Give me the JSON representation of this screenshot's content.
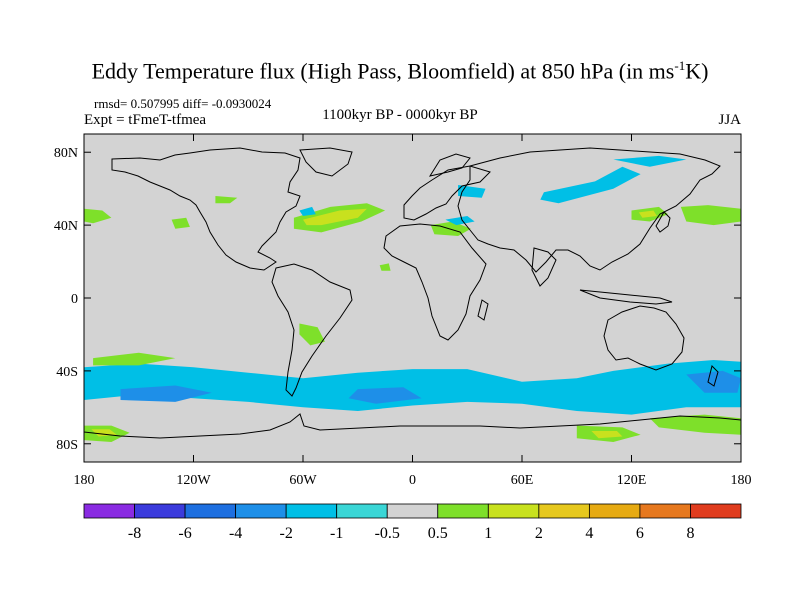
{
  "title_main": "Eddy Temperature flux (High Pass, Bloomfield) at 850 hPa (in ms",
  "title_sup": "-1",
  "title_end": "K)",
  "stats": "rmsd= 0.507995 diff= -0.0930024",
  "expt": "Expt = tFmeT-tfmea",
  "period": "1100kyr BP - 0000kyr BP",
  "season": "JJA",
  "map": {
    "lon_range": [
      -180,
      180
    ],
    "lat_range": [
      -90,
      90
    ],
    "background_color": "#d3d3d3",
    "y_ticks": [
      {
        "lat": 80,
        "label": "80N"
      },
      {
        "lat": 40,
        "label": "40N"
      },
      {
        "lat": 0,
        "label": "0"
      },
      {
        "lat": -40,
        "label": "40S"
      },
      {
        "lat": -80,
        "label": "80S"
      }
    ],
    "x_ticks": [
      {
        "lon": -180,
        "label": "180"
      },
      {
        "lon": -120,
        "label": "120W"
      },
      {
        "lon": -60,
        "label": "60W"
      },
      {
        "lon": 0,
        "label": "0"
      },
      {
        "lon": 60,
        "label": "60E"
      },
      {
        "lon": 120,
        "label": "120E"
      },
      {
        "lon": 180,
        "label": "180"
      }
    ]
  },
  "colorbar": {
    "colors": [
      "#8a2be2",
      "#3b3bdc",
      "#1d6fe0",
      "#1e8fe8",
      "#00bfe6",
      "#3ad6d6",
      "#d3d3d3",
      "#7ee02a",
      "#c8e11e",
      "#e6c81e",
      "#e6aa12",
      "#e6781e",
      "#e03c1e"
    ],
    "labels": [
      "-8",
      "-6",
      "-4",
      "-2",
      "-1",
      "-0.5",
      "0.5",
      "1",
      "2",
      "4",
      "6",
      "8"
    ]
  },
  "regions": [
    {
      "name": "southern-ocean-band-main",
      "color_index": 4,
      "points": [
        [
          -180,
          -38
        ],
        [
          -150,
          -36
        ],
        [
          -120,
          -38
        ],
        [
          -90,
          -41
        ],
        [
          -60,
          -44
        ],
        [
          -30,
          -41
        ],
        [
          0,
          -39
        ],
        [
          30,
          -39
        ],
        [
          60,
          -46
        ],
        [
          90,
          -44
        ],
        [
          110,
          -40
        ],
        [
          140,
          -36
        ],
        [
          165,
          -34
        ],
        [
          180,
          -35
        ],
        [
          180,
          -60
        ],
        [
          150,
          -60
        ],
        [
          120,
          -64
        ],
        [
          90,
          -62
        ],
        [
          60,
          -58
        ],
        [
          30,
          -57
        ],
        [
          0,
          -59
        ],
        [
          -30,
          -62
        ],
        [
          -60,
          -60
        ],
        [
          -90,
          -57
        ],
        [
          -120,
          -55
        ],
        [
          -150,
          -53
        ],
        [
          -180,
          -56
        ]
      ]
    },
    {
      "name": "southern-ocean-blue-cell-1",
      "color_index": 3,
      "points": [
        [
          -160,
          -50
        ],
        [
          -130,
          -48
        ],
        [
          -110,
          -52
        ],
        [
          -130,
          -57
        ],
        [
          -160,
          -56
        ]
      ]
    },
    {
      "name": "southern-ocean-blue-cell-2",
      "color_index": 3,
      "points": [
        [
          -30,
          -50
        ],
        [
          -5,
          -49
        ],
        [
          5,
          -55
        ],
        [
          -20,
          -58
        ],
        [
          -35,
          -55
        ]
      ]
    },
    {
      "name": "southern-ocean-blue-cell-3",
      "color_index": 3,
      "points": [
        [
          150,
          -42
        ],
        [
          170,
          -40
        ],
        [
          180,
          -44
        ],
        [
          178,
          -52
        ],
        [
          160,
          -52
        ]
      ]
    },
    {
      "name": "south-pacific-green",
      "color_index": 7,
      "points": [
        [
          -175,
          -33
        ],
        [
          -150,
          -30
        ],
        [
          -130,
          -33
        ],
        [
          -150,
          -37
        ],
        [
          -175,
          -37
        ]
      ]
    },
    {
      "name": "south-america-green",
      "color_index": 7,
      "points": [
        [
          -62,
          -14
        ],
        [
          -52,
          -16
        ],
        [
          -48,
          -24
        ],
        [
          -56,
          -26
        ],
        [
          -62,
          -20
        ]
      ]
    },
    {
      "name": "antarctic-coast-green-1",
      "color_index": 7,
      "points": [
        [
          -180,
          -70
        ],
        [
          -165,
          -70
        ],
        [
          -155,
          -74
        ],
        [
          -165,
          -79
        ],
        [
          -180,
          -78
        ]
      ]
    },
    {
      "name": "antarctic-coast-yellow-1",
      "color_index": 8,
      "points": [
        [
          -176,
          -72
        ],
        [
          -166,
          -72
        ],
        [
          -162,
          -75
        ],
        [
          -172,
          -76
        ]
      ]
    },
    {
      "name": "antarctic-coast-green-2",
      "color_index": 7,
      "points": [
        [
          90,
          -70
        ],
        [
          115,
          -71
        ],
        [
          125,
          -75
        ],
        [
          110,
          -79
        ],
        [
          90,
          -77
        ]
      ]
    },
    {
      "name": "antarctic-coast-yellow-2",
      "color_index": 8,
      "points": [
        [
          98,
          -73
        ],
        [
          112,
          -73
        ],
        [
          115,
          -76
        ],
        [
          102,
          -77
        ]
      ]
    },
    {
      "name": "antarctic-coast-green-3",
      "color_index": 7,
      "points": [
        [
          130,
          -66
        ],
        [
          160,
          -64
        ],
        [
          180,
          -66
        ],
        [
          180,
          -75
        ],
        [
          160,
          -74
        ],
        [
          135,
          -71
        ]
      ]
    },
    {
      "name": "north-atlantic-green",
      "color_index": 7,
      "points": [
        [
          -65,
          44
        ],
        [
          -45,
          50
        ],
        [
          -25,
          52
        ],
        [
          -15,
          48
        ],
        [
          -28,
          42
        ],
        [
          -50,
          36
        ],
        [
          -65,
          38
        ]
      ]
    },
    {
      "name": "north-atlantic-yellow",
      "color_index": 8,
      "points": [
        [
          -60,
          43
        ],
        [
          -40,
          48
        ],
        [
          -25,
          49
        ],
        [
          -30,
          44
        ],
        [
          -50,
          40
        ],
        [
          -58,
          40
        ]
      ]
    },
    {
      "name": "north-pacific-green-west",
      "color_index": 7,
      "points": [
        [
          -180,
          49
        ],
        [
          -170,
          48
        ],
        [
          -165,
          44
        ],
        [
          -175,
          41
        ],
        [
          -180,
          42
        ]
      ]
    },
    {
      "name": "north-pacific-green-east",
      "color_index": 7,
      "points": [
        [
          147,
          50
        ],
        [
          162,
          51
        ],
        [
          180,
          49
        ],
        [
          180,
          42
        ],
        [
          165,
          40
        ],
        [
          150,
          42
        ]
      ]
    },
    {
      "name": "west-us-green",
      "color_index": 7,
      "points": [
        [
          -132,
          43
        ],
        [
          -124,
          44
        ],
        [
          -122,
          39
        ],
        [
          -130,
          38
        ]
      ]
    },
    {
      "name": "canada-green",
      "color_index": 7,
      "points": [
        [
          -108,
          56
        ],
        [
          -96,
          55
        ],
        [
          -100,
          52
        ],
        [
          -108,
          52
        ]
      ]
    },
    {
      "name": "mediterranean-green",
      "color_index": 7,
      "points": [
        [
          10,
          40
        ],
        [
          22,
          42
        ],
        [
          32,
          38
        ],
        [
          25,
          34
        ],
        [
          12,
          35
        ]
      ]
    },
    {
      "name": "east-asia-green",
      "color_index": 7,
      "points": [
        [
          120,
          48
        ],
        [
          135,
          50
        ],
        [
          140,
          46
        ],
        [
          130,
          42
        ],
        [
          120,
          43
        ]
      ]
    },
    {
      "name": "east-asia-yellow",
      "color_index": 8,
      "points": [
        [
          124,
          47
        ],
        [
          132,
          48
        ],
        [
          134,
          45
        ],
        [
          126,
          44
        ]
      ]
    },
    {
      "name": "russia-cyan-band",
      "color_index": 4,
      "points": [
        [
          72,
          58
        ],
        [
          100,
          64
        ],
        [
          115,
          72
        ],
        [
          125,
          68
        ],
        [
          110,
          60
        ],
        [
          80,
          52
        ],
        [
          70,
          54
        ]
      ]
    },
    {
      "name": "arctic-cyan",
      "color_index": 4,
      "points": [
        [
          110,
          76
        ],
        [
          135,
          78
        ],
        [
          150,
          76
        ],
        [
          130,
          72
        ]
      ]
    },
    {
      "name": "baltic-cyan",
      "color_index": 4,
      "points": [
        [
          25,
          62
        ],
        [
          40,
          60
        ],
        [
          38,
          55
        ],
        [
          25,
          56
        ]
      ]
    },
    {
      "name": "europe-cyan",
      "color_index": 4,
      "points": [
        [
          18,
          43
        ],
        [
          30,
          45
        ],
        [
          34,
          42
        ],
        [
          24,
          40
        ]
      ]
    },
    {
      "name": "newfoundland-cyan",
      "color_index": 4,
      "points": [
        [
          -62,
          48
        ],
        [
          -55,
          50
        ],
        [
          -53,
          46
        ],
        [
          -60,
          45
        ]
      ]
    },
    {
      "name": "sahara-green",
      "color_index": 7,
      "points": [
        [
          -18,
          18
        ],
        [
          -13,
          19
        ],
        [
          -12,
          15
        ],
        [
          -17,
          15
        ]
      ]
    }
  ]
}
